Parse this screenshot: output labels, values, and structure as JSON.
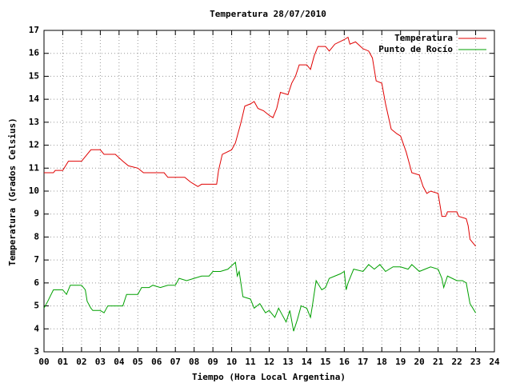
{
  "chart_data": {
    "type": "line",
    "title": "Temperatura 28/07/2010",
    "xlabel": "Tiempo (Hora Local Argentina)",
    "ylabel": "Temperatura (Grados Celsius)",
    "xlim": [
      0,
      24
    ],
    "ylim": [
      3,
      17
    ],
    "xticks": [
      {
        "value": 0,
        "label": "00"
      },
      {
        "value": 1,
        "label": "01"
      },
      {
        "value": 2,
        "label": "02"
      },
      {
        "value": 3,
        "label": "03"
      },
      {
        "value": 4,
        "label": "04"
      },
      {
        "value": 5,
        "label": "05"
      },
      {
        "value": 6,
        "label": "06"
      },
      {
        "value": 7,
        "label": "07"
      },
      {
        "value": 8,
        "label": "08"
      },
      {
        "value": 9,
        "label": "09"
      },
      10,
      11,
      12,
      13,
      14,
      15,
      16,
      17,
      18,
      19,
      20,
      21,
      22,
      23,
      24
    ],
    "yticks": [
      3,
      4,
      5,
      6,
      7,
      8,
      9,
      10,
      11,
      12,
      13,
      14,
      15,
      16,
      17
    ],
    "grid": true,
    "legend": "top-right",
    "series": [
      {
        "name": "Temperatura",
        "color": "#e00000",
        "x": [
          0,
          0.5,
          0.6,
          1.0,
          1.3,
          2.0,
          2.5,
          3.0,
          3.2,
          3.8,
          4.2,
          4.5,
          5.0,
          5.3,
          6.0,
          6.4,
          6.6,
          7.5,
          7.8,
          8.0,
          8.2,
          8.4,
          9.0,
          9.2,
          9.3,
          9.5,
          10.0,
          10.2,
          10.5,
          10.7,
          11.0,
          11.2,
          11.4,
          11.7,
          12.0,
          12.2,
          12.4,
          12.6,
          13.0,
          13.2,
          13.4,
          13.6,
          14.0,
          14.2,
          14.4,
          14.6,
          15.0,
          15.2,
          15.5,
          16.0,
          16.2,
          16.3,
          16.6,
          17.0,
          17.3,
          17.5,
          17.7,
          18.0,
          18.2,
          18.5,
          18.8,
          19.0,
          19.3,
          19.6,
          20.0,
          20.2,
          20.4,
          20.6,
          21.0,
          21.2,
          21.4,
          21.5,
          22.0,
          22.1,
          22.5,
          22.6,
          22.7,
          23.0
        ],
        "values": [
          10.8,
          10.8,
          10.9,
          10.9,
          11.3,
          11.3,
          11.8,
          11.8,
          11.6,
          11.6,
          11.3,
          11.1,
          11.0,
          10.8,
          10.8,
          10.8,
          10.6,
          10.6,
          10.4,
          10.3,
          10.2,
          10.3,
          10.3,
          10.3,
          10.9,
          11.6,
          11.8,
          12.1,
          13.0,
          13.7,
          13.8,
          13.9,
          13.6,
          13.5,
          13.3,
          13.2,
          13.6,
          14.3,
          14.2,
          14.7,
          15.0,
          15.5,
          15.5,
          15.3,
          15.9,
          16.3,
          16.3,
          16.1,
          16.4,
          16.6,
          16.7,
          16.4,
          16.5,
          16.2,
          16.1,
          15.8,
          14.8,
          14.7,
          13.8,
          12.7,
          12.5,
          12.4,
          11.7,
          10.8,
          10.7,
          10.2,
          9.9,
          10.0,
          9.9,
          8.9,
          8.9,
          9.1,
          9.1,
          8.9,
          8.8,
          8.5,
          7.9,
          7.6
        ]
      },
      {
        "name": "Punto de Rocío",
        "color": "#00a000",
        "x": [
          0,
          0.2,
          0.5,
          1.0,
          1.2,
          1.4,
          2.0,
          2.2,
          2.3,
          2.5,
          2.6,
          3.0,
          3.2,
          3.4,
          4.0,
          4.2,
          4.4,
          5.0,
          5.2,
          5.6,
          5.8,
          6.2,
          6.6,
          7.0,
          7.2,
          7.6,
          8.0,
          8.4,
          8.8,
          9.0,
          9.4,
          9.8,
          10.2,
          10.3,
          10.4,
          10.6,
          11.0,
          11.2,
          11.5,
          11.8,
          12.0,
          12.3,
          12.5,
          12.7,
          12.9,
          13.1,
          13.3,
          13.5,
          13.7,
          14.0,
          14.2,
          14.3,
          14.5,
          14.8,
          15.0,
          15.2,
          15.5,
          15.8,
          16.0,
          16.1,
          16.2,
          16.5,
          17.0,
          17.3,
          17.6,
          17.9,
          18.2,
          18.6,
          19.0,
          19.4,
          19.6,
          20.0,
          20.3,
          20.6,
          21.0,
          21.2,
          21.3,
          21.5,
          22.0,
          22.3,
          22.5,
          22.7,
          23.0
        ],
        "values": [
          4.9,
          5.2,
          5.7,
          5.7,
          5.5,
          5.9,
          5.9,
          5.7,
          5.2,
          4.9,
          4.8,
          4.8,
          4.7,
          5.0,
          5.0,
          5.0,
          5.5,
          5.5,
          5.8,
          5.8,
          5.9,
          5.8,
          5.9,
          5.9,
          6.2,
          6.1,
          6.2,
          6.3,
          6.3,
          6.5,
          6.5,
          6.6,
          6.9,
          6.3,
          6.5,
          5.4,
          5.3,
          4.9,
          5.1,
          4.7,
          4.8,
          4.5,
          4.9,
          4.6,
          4.3,
          4.8,
          3.9,
          4.4,
          5.0,
          4.9,
          4.5,
          5.0,
          6.1,
          5.7,
          5.8,
          6.2,
          6.3,
          6.4,
          6.5,
          5.7,
          6.0,
          6.6,
          6.5,
          6.8,
          6.6,
          6.8,
          6.5,
          6.7,
          6.7,
          6.6,
          6.8,
          6.5,
          6.6,
          6.7,
          6.6,
          6.2,
          5.8,
          6.3,
          6.1,
          6.1,
          6.0,
          5.1,
          4.7
        ]
      }
    ]
  }
}
